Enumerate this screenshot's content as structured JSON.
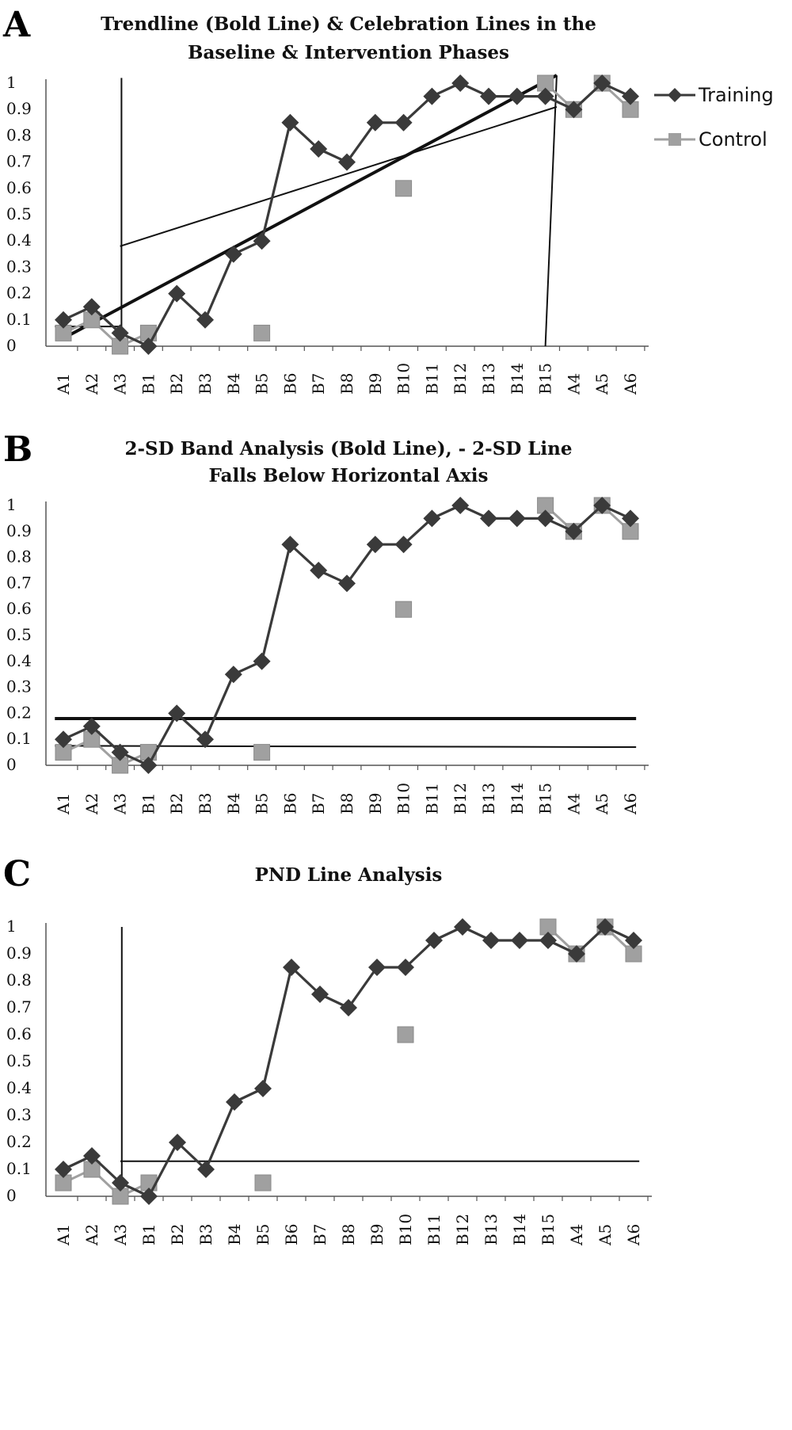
{
  "chart_data": [
    {
      "type": "line",
      "panel_label": "A",
      "title_lines": [
        "Trendline (Bold Line) & Celebration Lines in the",
        "Baseline & Intervention Phases"
      ],
      "categories": [
        "A1",
        "A2",
        "A3",
        "B1",
        "B2",
        "B3",
        "B4",
        "B5",
        "B6",
        "B7",
        "B8",
        "B9",
        "B10",
        "B11",
        "B12",
        "B13",
        "B14",
        "B15",
        "A4",
        "A5",
        "A6"
      ],
      "y_ticks": [
        "0",
        "0.1",
        "0.2",
        "0.3",
        "0.4",
        "0.5",
        "0.6",
        "0.7",
        "0.8",
        "0.9",
        "1"
      ],
      "ylim": [
        0,
        1
      ],
      "series": [
        {
          "name": "Training",
          "color": "#3a3a3a",
          "marker": "diamond",
          "values": [
            0.1,
            0.15,
            0.05,
            0,
            0.2,
            0.1,
            0.35,
            0.4,
            0.85,
            0.75,
            0.7,
            0.85,
            0.85,
            0.95,
            1,
            0.95,
            0.95,
            0.95,
            0.9,
            1,
            0.95
          ]
        },
        {
          "name": "Control",
          "color": "#a0a0a0",
          "marker": "square",
          "values": [
            0.05,
            0.1,
            0,
            0.05,
            null,
            null,
            null,
            0.05,
            null,
            null,
            null,
            null,
            0.6,
            null,
            null,
            null,
            null,
            1,
            0.9,
            1,
            0.9
          ]
        }
      ],
      "legend": {
        "position": "right",
        "entries": [
          "Training",
          "Control"
        ]
      },
      "reference_lines": [
        {
          "label": "trendline-bold",
          "bold": true,
          "from": [
            0,
            0.03
          ],
          "to": [
            17.4,
            1.03
          ]
        },
        {
          "label": "celebration-baseline",
          "bold": false,
          "from": [
            -0.3,
            0.075
          ],
          "to": [
            2,
            0.075
          ]
        },
        {
          "label": "celebration-intervention",
          "bold": false,
          "from": [
            2,
            0.38
          ],
          "to": [
            17.4,
            0.91
          ]
        },
        {
          "label": "phase-line-start",
          "bold": false,
          "from": [
            2.05,
            1.02
          ],
          "to": [
            2.05,
            0
          ]
        },
        {
          "label": "phase-line-end",
          "bold": false,
          "from": [
            17.4,
            1.03
          ],
          "to": [
            17.0,
            0
          ]
        }
      ]
    },
    {
      "type": "line",
      "panel_label": "B",
      "title_lines": [
        "2-SD Band Analysis (Bold Line), - 2-SD Line",
        "Falls Below Horizontal Axis"
      ],
      "categories": [
        "A1",
        "A2",
        "A3",
        "B1",
        "B2",
        "B3",
        "B4",
        "B5",
        "B6",
        "B7",
        "B8",
        "B9",
        "B10",
        "B11",
        "B12",
        "B13",
        "B14",
        "B15",
        "A4",
        "A5",
        "A6"
      ],
      "y_ticks": [
        "0",
        "0.1",
        "0.2",
        "0.3",
        "0.4",
        "0.5",
        "0.6",
        "0.7",
        "0.8",
        "0.9",
        "1"
      ],
      "ylim": [
        0,
        1
      ],
      "series": [
        {
          "name": "Training",
          "color": "#3a3a3a",
          "marker": "diamond",
          "values": [
            0.1,
            0.15,
            0.05,
            0,
            0.2,
            0.1,
            0.35,
            0.4,
            0.85,
            0.75,
            0.7,
            0.85,
            0.85,
            0.95,
            1,
            0.95,
            0.95,
            0.95,
            0.9,
            1,
            0.95
          ]
        },
        {
          "name": "Control",
          "color": "#a0a0a0",
          "marker": "square",
          "values": [
            0.05,
            0.1,
            0,
            0.05,
            null,
            null,
            null,
            0.05,
            null,
            null,
            null,
            null,
            0.6,
            null,
            null,
            null,
            null,
            1,
            0.9,
            1,
            0.9
          ]
        }
      ],
      "reference_lines": [
        {
          "label": "plus-2sd-line",
          "bold": true,
          "from": [
            -0.3,
            0.18
          ],
          "to": [
            20.2,
            0.18
          ]
        },
        {
          "label": "mean-line",
          "bold": false,
          "from": [
            -0.3,
            0.075
          ],
          "to": [
            20.2,
            0.07
          ]
        }
      ]
    },
    {
      "type": "line",
      "panel_label": "C",
      "title_lines": [
        "PND Line Analysis"
      ],
      "categories": [
        "A1",
        "A2",
        "A3",
        "B1",
        "B2",
        "B3",
        "B4",
        "B5",
        "B6",
        "B7",
        "B8",
        "B9",
        "B10",
        "B11",
        "B12",
        "B13",
        "B14",
        "B15",
        "A4",
        "A5",
        "A6"
      ],
      "y_ticks": [
        "0",
        "0.1",
        "0.2",
        "0.3",
        "0.4",
        "0.5",
        "0.6",
        "0.7",
        "0.8",
        "0.9",
        "1"
      ],
      "ylim": [
        0,
        1
      ],
      "series": [
        {
          "name": "Training",
          "color": "#3a3a3a",
          "marker": "diamond",
          "values": [
            0.1,
            0.15,
            0.05,
            0,
            0.2,
            0.1,
            0.35,
            0.4,
            0.85,
            0.75,
            0.7,
            0.85,
            0.85,
            0.95,
            1,
            0.95,
            0.95,
            0.95,
            0.9,
            1,
            0.95
          ]
        },
        {
          "name": "Control",
          "color": "#a0a0a0",
          "marker": "square",
          "values": [
            0.05,
            0.1,
            0,
            0.05,
            null,
            null,
            null,
            0.05,
            null,
            null,
            null,
            null,
            0.6,
            null,
            null,
            null,
            null,
            1,
            0.9,
            1,
            0.9
          ]
        }
      ],
      "reference_lines": [
        {
          "label": "pnd-line",
          "bold": false,
          "from": [
            2,
            0.13
          ],
          "to": [
            20.2,
            0.13
          ]
        },
        {
          "label": "phase-line",
          "bold": false,
          "from": [
            2.05,
            1.0
          ],
          "to": [
            2.05,
            0
          ]
        }
      ]
    }
  ]
}
